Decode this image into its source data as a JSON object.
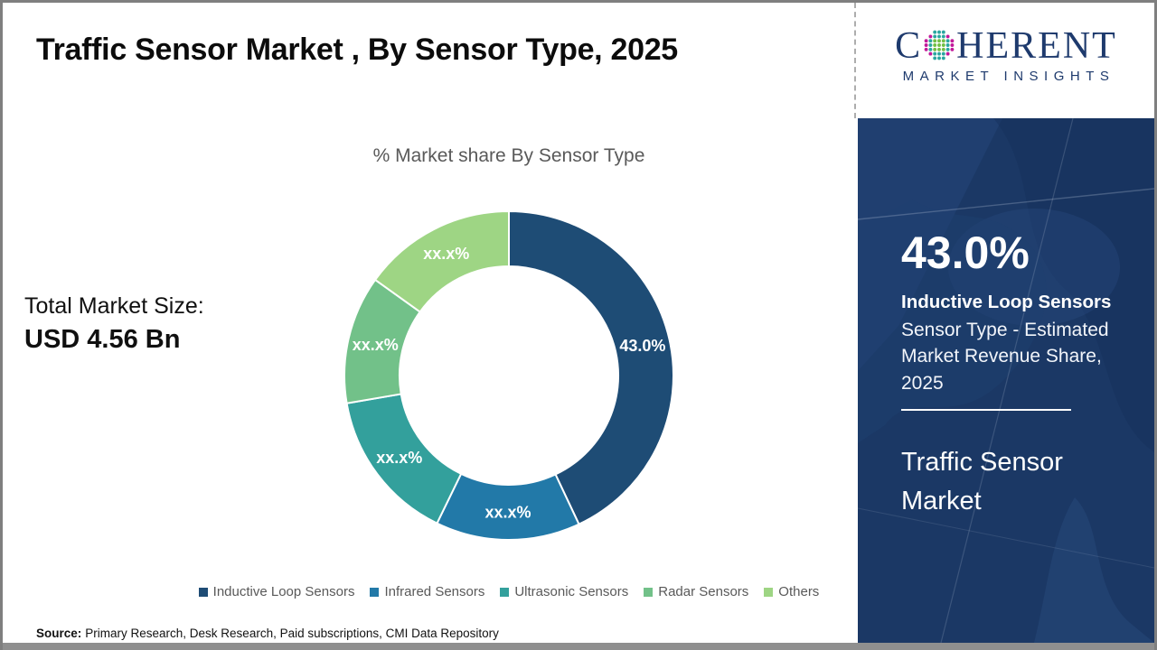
{
  "header": {
    "title": "Traffic Sensor Market , By Sensor Type, 2025"
  },
  "logo": {
    "letter_c": "C",
    "word_rest": "HERENT",
    "subtitle": "MARKET INSIGHTS",
    "brand_color": "#1E3A6D",
    "globe_colors": {
      "teal": "#2AA6A0",
      "green": "#72BF44",
      "magenta": "#C2189A"
    }
  },
  "left_panel": {
    "market_size_label": "Total Market Size:",
    "market_size_value": "USD 4.56 Bn"
  },
  "chart_data": {
    "type": "pie",
    "variant": "donut",
    "title": "% Market share By Sensor Type",
    "categories": [
      "Inductive Loop Sensors",
      "Infrared Sensors",
      "Ultrasonic Sensors",
      "Radar Sensors",
      "Others"
    ],
    "values": [
      43.0,
      14.2,
      15.1,
      12.6,
      15.1
    ],
    "labels": [
      "43.0%",
      "xx.x%",
      "xx.x%",
      "xx.x%",
      "xx.x%"
    ],
    "colors": [
      "#1E4C75",
      "#2279A8",
      "#33A09C",
      "#72C189",
      "#9ED584"
    ],
    "inner_radius_ratio": 0.665,
    "start_angle_deg": 0,
    "legend_position": "bottom"
  },
  "sidebar": {
    "stat_value": "43.0%",
    "stat_segment": "Inductive Loop Sensors",
    "stat_description": "Sensor Type - Estimated Market Revenue Share, 2025",
    "market_name": "Traffic Sensor Market",
    "background_color": "#1B3865"
  },
  "footer": {
    "source_label": "Source:",
    "source_text": "Primary Research, Desk Research, Paid subscriptions, CMI Data Repository"
  }
}
